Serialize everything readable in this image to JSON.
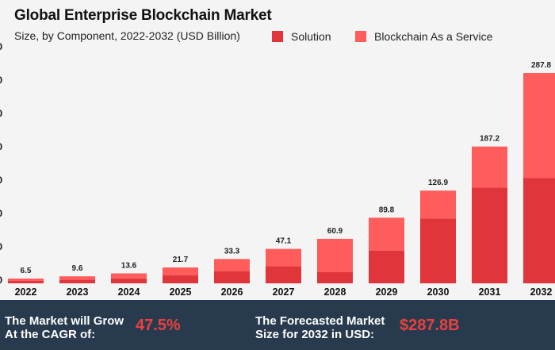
{
  "title": "Global Enterprise Blockchain Market",
  "subtitle": "Size, by Component, 2022-2032 (USD Billion)",
  "colors": {
    "solution": "#e0353a",
    "baas": "#ff5c5c",
    "footer_bg": "#283a4e",
    "accent": "#e8413e"
  },
  "chart_data": {
    "type": "bar",
    "stacked": true,
    "title": "Global Enterprise Blockchain Market",
    "subtitle": "Size, by Component, 2022-2032 (USD Billion)",
    "categories": [
      "2022",
      "2023",
      "2024",
      "2025",
      "2026",
      "2027",
      "2028",
      "2029",
      "2030",
      "2031",
      "2032"
    ],
    "series": [
      {
        "name": "Solution",
        "values": [
          3.3,
          4.8,
          6.8,
          10.9,
          16.7,
          23.5,
          15.2,
          44.9,
          88.8,
          131.0,
          143.9
        ]
      },
      {
        "name": "Blockchain As a Service",
        "values": [
          3.2,
          4.8,
          6.8,
          10.8,
          16.6,
          23.6,
          45.7,
          44.9,
          38.1,
          56.2,
          143.9
        ]
      }
    ],
    "totals": [
      "6.5",
      "9.6",
      "13.6",
      "21.7",
      "33.3",
      "47.1",
      "60.9",
      "89.8",
      "126.9",
      "187.2",
      "287.8"
    ],
    "ylim": [
      0,
      300
    ],
    "y_tick_labels": [
      "0",
      "0",
      "0",
      "0",
      "0",
      "0",
      "0",
      "0"
    ],
    "legend_position": "top-right",
    "grid": false
  },
  "footer": {
    "cagr_line1": "The Market will Grow",
    "cagr_line2": "At the CAGR of:",
    "cagr_value": "47.5%",
    "forecast_line1": "The Forecasted Market",
    "forecast_line2": "Size for 2032 in USD:",
    "forecast_value": "$287.8B"
  }
}
